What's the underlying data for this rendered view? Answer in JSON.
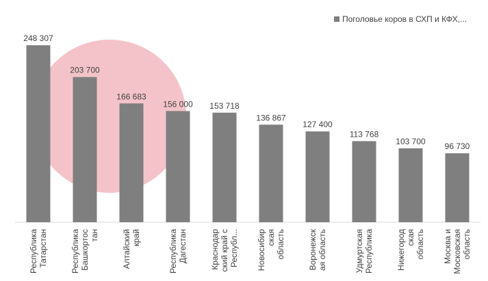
{
  "chart_data": {
    "type": "bar",
    "categories": [
      "Республика Татарстан",
      "Республика Башкортостан",
      "Алтайский край",
      "Республика Дагестан",
      "Краснодарский край с Республ...",
      "Новосибирская область",
      "Воронежская область",
      "Удмуртская Республика",
      "Нижегородская область",
      "Москва и Московская область"
    ],
    "series": [
      {
        "name": "Поголовье коров в СХП и КФХ,...",
        "color": "#7f7f7f",
        "values": [
          248307,
          203700,
          166683,
          156000,
          153718,
          136867,
          127400,
          113768,
          103700,
          96730
        ],
        "value_labels": [
          "248 307",
          "203 700",
          "166 683",
          "156 000",
          "153 718",
          "136 867",
          "127 400",
          "113 768",
          "103 700",
          "96 730"
        ]
      }
    ],
    "ylim": [
      0,
      260000
    ],
    "legend": "top-right"
  }
}
